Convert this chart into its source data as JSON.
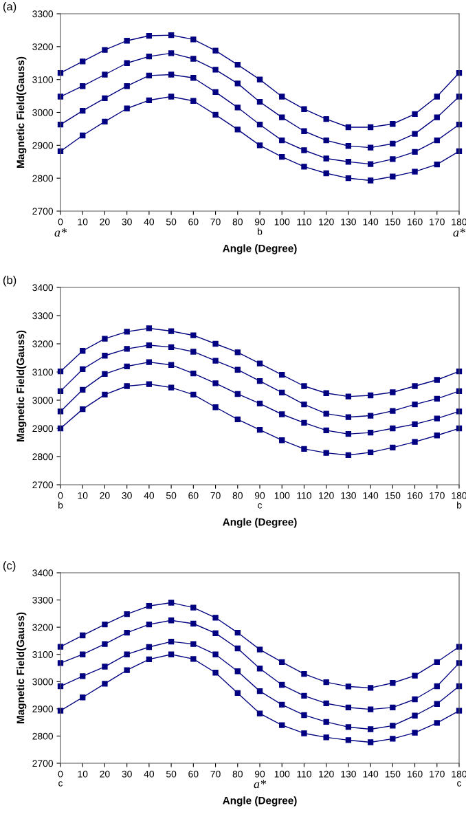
{
  "chart_data": [
    {
      "type": "line",
      "title": "(a)",
      "xlabel": "Angle (Degree)",
      "ylabel": "Magnetic Field(Gauss)",
      "marker": "square",
      "line_style": "solid",
      "grid": false,
      "legend": false,
      "x": [
        0,
        10,
        20,
        30,
        40,
        50,
        60,
        70,
        80,
        90,
        100,
        110,
        120,
        130,
        140,
        150,
        160,
        170,
        180
      ],
      "xlim": [
        0,
        180
      ],
      "xticks": [
        0,
        10,
        20,
        30,
        40,
        50,
        60,
        70,
        80,
        90,
        100,
        110,
        120,
        130,
        140,
        150,
        160,
        170,
        180
      ],
      "ylim": [
        2700,
        3300
      ],
      "yticks": [
        2700,
        2800,
        2900,
        3000,
        3100,
        3200,
        3300
      ],
      "annotations": [
        "a*",
        "b",
        "a*"
      ],
      "series": [
        {
          "color": "#000080",
          "values": [
            3120,
            3155,
            3190,
            3218,
            3233,
            3235,
            3222,
            3188,
            3145,
            3100,
            3048,
            3010,
            2980,
            2955,
            2955,
            2965,
            2995,
            3048,
            3120
          ]
        },
        {
          "color": "#000080",
          "values": [
            3048,
            3080,
            3115,
            3150,
            3170,
            3180,
            3163,
            3130,
            3088,
            3032,
            2985,
            2943,
            2915,
            2898,
            2893,
            2905,
            2935,
            2985,
            3048
          ]
        },
        {
          "color": "#000080",
          "values": [
            2963,
            3005,
            3043,
            3080,
            3112,
            3115,
            3105,
            3062,
            3015,
            2963,
            2915,
            2885,
            2860,
            2850,
            2843,
            2858,
            2880,
            2915,
            2963
          ]
        },
        {
          "color": "#000080",
          "values": [
            2882,
            2930,
            2972,
            3012,
            3037,
            3048,
            3035,
            2993,
            2948,
            2900,
            2865,
            2835,
            2815,
            2800,
            2793,
            2805,
            2820,
            2842,
            2882
          ]
        }
      ]
    },
    {
      "type": "line",
      "title": "(b)",
      "xlabel": "Angle (Degree)",
      "ylabel": "Magnetic Field(Gauss)",
      "marker": "square",
      "line_style": "solid",
      "grid": false,
      "legend": false,
      "x": [
        0,
        10,
        20,
        30,
        40,
        50,
        60,
        70,
        80,
        90,
        100,
        110,
        120,
        130,
        140,
        150,
        160,
        170,
        180
      ],
      "xlim": [
        0,
        180
      ],
      "xticks": [
        0,
        10,
        20,
        30,
        40,
        50,
        60,
        70,
        80,
        90,
        100,
        110,
        120,
        130,
        140,
        150,
        160,
        170,
        180
      ],
      "ylim": [
        2700,
        3400
      ],
      "yticks": [
        2700,
        2800,
        2900,
        3000,
        3100,
        3200,
        3300,
        3400
      ],
      "annotations": [
        "b",
        "c",
        "b"
      ],
      "series": [
        {
          "color": "#000080",
          "values": [
            3102,
            3175,
            3218,
            3243,
            3255,
            3245,
            3230,
            3200,
            3170,
            3130,
            3090,
            3050,
            3025,
            3013,
            3017,
            3028,
            3050,
            3072,
            3102
          ]
        },
        {
          "color": "#000080",
          "values": [
            3032,
            3110,
            3158,
            3182,
            3195,
            3188,
            3172,
            3140,
            3108,
            3068,
            3027,
            2985,
            2952,
            2940,
            2945,
            2962,
            2985,
            3005,
            3032
          ]
        },
        {
          "color": "#000080",
          "values": [
            2960,
            3037,
            3093,
            3120,
            3135,
            3125,
            3095,
            3060,
            3022,
            2988,
            2950,
            2920,
            2893,
            2880,
            2885,
            2900,
            2915,
            2935,
            2960
          ]
        },
        {
          "color": "#000080",
          "values": [
            2900,
            2968,
            3020,
            3050,
            3057,
            3045,
            3020,
            2975,
            2932,
            2895,
            2858,
            2827,
            2813,
            2805,
            2815,
            2832,
            2852,
            2875,
            2900
          ]
        }
      ]
    },
    {
      "type": "line",
      "title": "(c)",
      "xlabel": "Angle (Degree)",
      "ylabel": "Magnetic Field(Gauss)",
      "marker": "square",
      "line_style": "solid",
      "grid": false,
      "legend": false,
      "x": [
        0,
        10,
        20,
        30,
        40,
        50,
        60,
        70,
        80,
        90,
        100,
        110,
        120,
        130,
        140,
        150,
        160,
        170,
        180
      ],
      "xlim": [
        0,
        180
      ],
      "xticks": [
        0,
        10,
        20,
        30,
        40,
        50,
        60,
        70,
        80,
        90,
        100,
        110,
        120,
        130,
        140,
        150,
        160,
        170,
        180
      ],
      "ylim": [
        2700,
        3400
      ],
      "yticks": [
        2700,
        2800,
        2900,
        3000,
        3100,
        3200,
        3300,
        3400
      ],
      "annotations": [
        "c",
        "a*",
        "c"
      ],
      "series": [
        {
          "color": "#000080",
          "values": [
            3128,
            3170,
            3210,
            3248,
            3278,
            3290,
            3272,
            3235,
            3180,
            3118,
            3072,
            3028,
            2998,
            2982,
            2977,
            2995,
            3022,
            3072,
            3128
          ]
        },
        {
          "color": "#000080",
          "values": [
            3068,
            3100,
            3138,
            3180,
            3210,
            3225,
            3213,
            3178,
            3122,
            3048,
            2988,
            2948,
            2920,
            2905,
            2898,
            2905,
            2935,
            2983,
            3068
          ]
        },
        {
          "color": "#000080",
          "values": [
            2983,
            3020,
            3055,
            3100,
            3127,
            3147,
            3138,
            3100,
            3038,
            2965,
            2915,
            2877,
            2852,
            2833,
            2825,
            2838,
            2875,
            2918,
            2983
          ]
        },
        {
          "color": "#000080",
          "values": [
            2893,
            2942,
            2992,
            3042,
            3082,
            3100,
            3083,
            3033,
            2958,
            2883,
            2840,
            2810,
            2795,
            2785,
            2777,
            2790,
            2812,
            2848,
            2893
          ]
        }
      ]
    }
  ]
}
